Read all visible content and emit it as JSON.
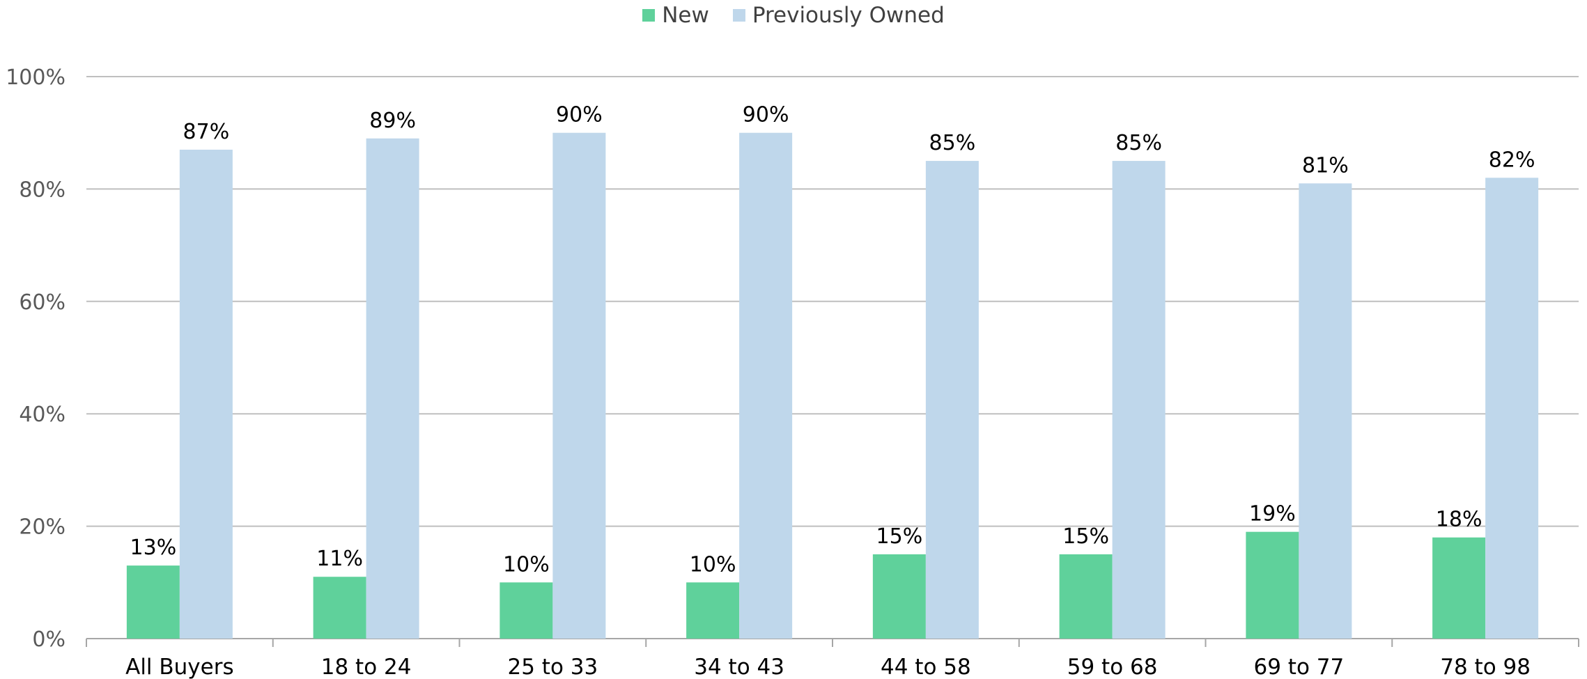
{
  "chart_data": {
    "type": "bar",
    "title": "",
    "xlabel": "",
    "ylabel": "",
    "categories": [
      "All Buyers",
      "18 to 24",
      "25 to 33",
      "34 to 43",
      "44 to 58",
      "59 to 68",
      "69 to 77",
      "78 to 98"
    ],
    "series": [
      {
        "name": "New",
        "color": "#5fd19b",
        "values": [
          13,
          11,
          10,
          10,
          15,
          15,
          19,
          18
        ],
        "labels": [
          "13%",
          "11%",
          "10%",
          "10%",
          "15%",
          "15%",
          "19%",
          "18%"
        ]
      },
      {
        "name": "Previously Owned",
        "color": "#bfd7eb",
        "values": [
          87,
          89,
          90,
          90,
          85,
          85,
          81,
          82
        ],
        "labels": [
          "87%",
          "89%",
          "90%",
          "90%",
          "85%",
          "85%",
          "81%",
          "82%"
        ]
      }
    ],
    "ylim": [
      0,
      100
    ],
    "yticks": [
      0,
      20,
      40,
      60,
      80,
      100
    ],
    "ytick_labels": [
      "0%",
      "20%",
      "40%",
      "60%",
      "80%",
      "100%"
    ],
    "grid": true,
    "legend_position": "top-center"
  }
}
